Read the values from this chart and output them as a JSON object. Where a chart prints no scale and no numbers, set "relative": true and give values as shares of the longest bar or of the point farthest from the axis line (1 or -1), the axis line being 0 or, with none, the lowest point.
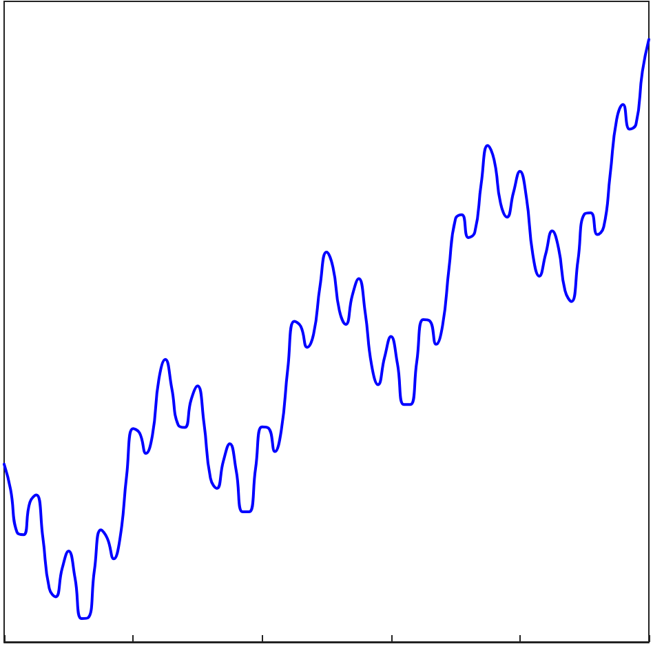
{
  "chart_data": {
    "type": "line",
    "relative": true,
    "marker": "none",
    "line_style": "solid",
    "categories": [
      null,
      null,
      null,
      null,
      null,
      null,
      null,
      null,
      null,
      null,
      null,
      null,
      null,
      null,
      null,
      null,
      null,
      null,
      null,
      null,
      null,
      null,
      null,
      null,
      null,
      null,
      null,
      null,
      null,
      null,
      null,
      null,
      null,
      null,
      null,
      null,
      null,
      null,
      null,
      null,
      null,
      null,
      null,
      null,
      null,
      null,
      null,
      null,
      null,
      null,
      null,
      null,
      null,
      null,
      null,
      null,
      null,
      null,
      null,
      null,
      null,
      null,
      null,
      null,
      null,
      null,
      null,
      null,
      null,
      null,
      null,
      null,
      null,
      null,
      null,
      null,
      null,
      null,
      null,
      null,
      null,
      null,
      null,
      null,
      null,
      null,
      null,
      null,
      null,
      null,
      null,
      null,
      null,
      null,
      null,
      null,
      null,
      null,
      null,
      null,
      null
    ],
    "series": [
      {
        "color": "#0000ff",
        "values": [
          0.295,
          0.253,
          0.182,
          0.178,
          0.232,
          0.244,
          0.174,
          0.089,
          0.075,
          0.122,
          0.151,
          0.106,
          0.039,
          0.04,
          0.119,
          0.186,
          0.172,
          0.138,
          0.174,
          0.276,
          0.354,
          0.347,
          0.313,
          0.343,
          0.436,
          0.469,
          0.421,
          0.36,
          0.356,
          0.402,
          0.425,
          0.363,
          0.272,
          0.255,
          0.3,
          0.329,
          0.284,
          0.216,
          0.216,
          0.288,
          0.357,
          0.355,
          0.316,
          0.352,
          0.454,
          0.532,
          0.524,
          0.489,
          0.511,
          0.591,
          0.647,
          0.622,
          0.55,
          0.527,
          0.575,
          0.603,
          0.547,
          0.459,
          0.427,
          0.472,
          0.507,
          0.462,
          0.394,
          0.394,
          0.465,
          0.535,
          0.533,
          0.494,
          0.525,
          0.62,
          0.702,
          0.709,
          0.671,
          0.68,
          0.761,
          0.824,
          0.8,
          0.728,
          0.705,
          0.746,
          0.781,
          0.738,
          0.643,
          0.607,
          0.644,
          0.682,
          0.653,
          0.583,
          0.565,
          0.633,
          0.71,
          0.712,
          0.676,
          0.689,
          0.776,
          0.867,
          0.892,
          0.851,
          0.859,
          0.947,
          1
        ]
      }
    ]
  }
}
